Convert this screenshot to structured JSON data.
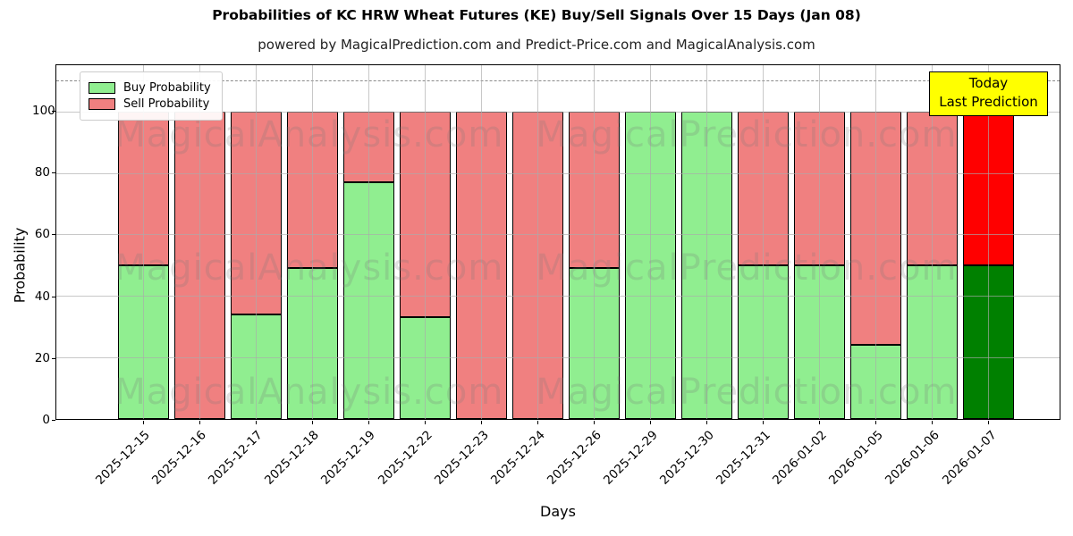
{
  "title": "Probabilities of KC HRW Wheat Futures (KE) Buy/Sell Signals Over 15 Days (Jan 08)",
  "subtitle": "powered by MagicalPrediction.com and Predict-Price.com and MagicalAnalysis.com",
  "legend": {
    "items": [
      {
        "label": "Buy Probability",
        "color": "#90EE90"
      },
      {
        "label": "Sell Probability",
        "color": "#F08080"
      }
    ]
  },
  "annotation": {
    "line1": "Today",
    "line2": "Last Prediction",
    "bg_color": "#FFFF00"
  },
  "watermarks": {
    "left_text": "MagicalAnalysis.com",
    "right_text": "MagicalPrediction.com"
  },
  "axes": {
    "xlabel": "Days",
    "ylabel": "Probability",
    "yticks": [
      0,
      20,
      40,
      60,
      80,
      100
    ],
    "ymax": 115,
    "dashed_threshold": 110,
    "grid": true
  },
  "chart_data": {
    "type": "bar",
    "stacked": true,
    "title": "Probabilities of KC HRW Wheat Futures (KE) Buy/Sell Signals Over 15 Days (Jan 08)",
    "xlabel": "Days",
    "ylabel": "Probability",
    "ylim": [
      0,
      115
    ],
    "categories": [
      "2025-12-15",
      "2025-12-16",
      "2025-12-17",
      "2025-12-18",
      "2025-12-19",
      "2025-12-22",
      "2025-12-23",
      "2025-12-24",
      "2025-12-26",
      "2025-12-29",
      "2025-12-30",
      "2025-12-31",
      "2026-01-02",
      "2026-01-05",
      "2026-01-06",
      "2026-01-07"
    ],
    "series": [
      {
        "name": "Buy Probability",
        "color": "#90EE90",
        "values": [
          50,
          0,
          34,
          49,
          77,
          33,
          0,
          0,
          49,
          100,
          100,
          50,
          50,
          24,
          50,
          50
        ]
      },
      {
        "name": "Sell Probability",
        "color": "#F08080",
        "values": [
          50,
          100,
          66,
          51,
          23,
          67,
          100,
          100,
          51,
          0,
          0,
          50,
          50,
          76,
          50,
          50
        ]
      }
    ],
    "today_bar": {
      "category": "2026-01-07",
      "index": 15,
      "buy_color": "#008000",
      "sell_color": "#FF0000",
      "label": "Today / Last Prediction"
    }
  }
}
